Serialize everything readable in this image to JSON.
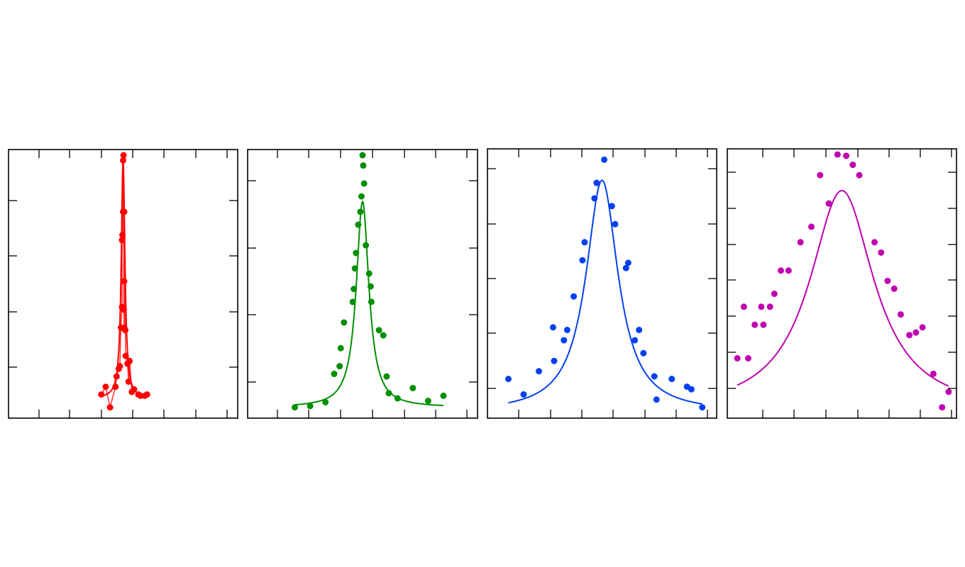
{
  "chart_data": [
    {
      "type": "scatter",
      "title": "",
      "xlabel": "",
      "ylabel": "",
      "xlim": [
        0,
        1
      ],
      "ylim": [
        0,
        1
      ],
      "grid": false,
      "color": "#ff0000",
      "fit_curve": {
        "shape": "lorentzian",
        "center": 0.5,
        "half_width": 0.01,
        "amplitude": 0.93,
        "baseline": 0.055
      },
      "fit_line_connected": true,
      "points": [
        {
          "x": 0.4,
          "y": 0.07
        },
        {
          "x": 0.44,
          "y": 0.02
        },
        {
          "x": 0.42,
          "y": 0.1
        },
        {
          "x": 0.465,
          "y": 0.1
        },
        {
          "x": 0.47,
          "y": 0.14
        },
        {
          "x": 0.48,
          "y": 0.17
        },
        {
          "x": 0.485,
          "y": 0.18
        },
        {
          "x": 0.49,
          "y": 0.33
        },
        {
          "x": 0.495,
          "y": 0.41
        },
        {
          "x": 0.495,
          "y": 0.67
        },
        {
          "x": 0.497,
          "y": 0.69
        },
        {
          "x": 0.5,
          "y": 0.78
        },
        {
          "x": 0.5,
          "y": 0.98
        },
        {
          "x": 0.502,
          "y": 1.0
        },
        {
          "x": 0.503,
          "y": 0.4
        },
        {
          "x": 0.505,
          "y": 0.33
        },
        {
          "x": 0.505,
          "y": 0.51
        },
        {
          "x": 0.505,
          "y": 0.78
        },
        {
          "x": 0.51,
          "y": 0.32
        },
        {
          "x": 0.512,
          "y": 0.22
        },
        {
          "x": 0.52,
          "y": 0.19
        },
        {
          "x": 0.525,
          "y": 0.12
        },
        {
          "x": 0.53,
          "y": 0.2
        },
        {
          "x": 0.54,
          "y": 0.08
        },
        {
          "x": 0.55,
          "y": 0.09
        },
        {
          "x": 0.57,
          "y": 0.07
        },
        {
          "x": 0.58,
          "y": 0.065
        },
        {
          "x": 0.6,
          "y": 0.065
        },
        {
          "x": 0.61,
          "y": 0.07
        }
      ]
    },
    {
      "type": "scatter",
      "title": "",
      "xlabel": "",
      "ylabel": "",
      "xlim": [
        0,
        1
      ],
      "ylim": [
        0,
        1
      ],
      "grid": false,
      "color": "#009000",
      "fit_curve": {
        "shape": "lorentzian",
        "center": 0.5,
        "half_width": 0.035,
        "amplitude": 0.8,
        "baseline": 0.02
      },
      "fit_line_connected": false,
      "points": [
        {
          "x": 0.19,
          "y": 0.02
        },
        {
          "x": 0.26,
          "y": 0.025
        },
        {
          "x": 0.33,
          "y": 0.04
        },
        {
          "x": 0.37,
          "y": 0.15
        },
        {
          "x": 0.395,
          "y": 0.18
        },
        {
          "x": 0.4,
          "y": 0.25
        },
        {
          "x": 0.415,
          "y": 0.35
        },
        {
          "x": 0.455,
          "y": 0.43
        },
        {
          "x": 0.46,
          "y": 0.48
        },
        {
          "x": 0.465,
          "y": 0.56
        },
        {
          "x": 0.47,
          "y": 0.62
        },
        {
          "x": 0.48,
          "y": 0.73
        },
        {
          "x": 0.49,
          "y": 0.78
        },
        {
          "x": 0.495,
          "y": 0.84
        },
        {
          "x": 0.5,
          "y": 1.0
        },
        {
          "x": 0.503,
          "y": 0.96
        },
        {
          "x": 0.507,
          "y": 0.89
        },
        {
          "x": 0.515,
          "y": 0.65
        },
        {
          "x": 0.53,
          "y": 0.54
        },
        {
          "x": 0.537,
          "y": 0.49
        },
        {
          "x": 0.54,
          "y": 0.43
        },
        {
          "x": 0.575,
          "y": 0.32
        },
        {
          "x": 0.595,
          "y": 0.3
        },
        {
          "x": 0.61,
          "y": 0.14
        },
        {
          "x": 0.62,
          "y": 0.075
        },
        {
          "x": 0.66,
          "y": 0.055
        },
        {
          "x": 0.73,
          "y": 0.095
        },
        {
          "x": 0.8,
          "y": 0.045
        },
        {
          "x": 0.87,
          "y": 0.065
        }
      ]
    },
    {
      "type": "scatter",
      "title": "",
      "xlabel": "",
      "ylabel": "",
      "xlim": [
        0,
        1
      ],
      "ylim": [
        0,
        1
      ],
      "grid": false,
      "color": "#0040f0",
      "fit_curve": {
        "shape": "lorentzian",
        "center": 0.5,
        "half_width": 0.09,
        "amplitude": 0.9,
        "baseline": 0.0
      },
      "fit_line_connected": false,
      "points": [
        {
          "x": 0.07,
          "y": 0.13
        },
        {
          "x": 0.14,
          "y": 0.07
        },
        {
          "x": 0.21,
          "y": 0.16
        },
        {
          "x": 0.275,
          "y": 0.33
        },
        {
          "x": 0.28,
          "y": 0.2
        },
        {
          "x": 0.325,
          "y": 0.28
        },
        {
          "x": 0.34,
          "y": 0.32
        },
        {
          "x": 0.37,
          "y": 0.45
        },
        {
          "x": 0.41,
          "y": 0.59
        },
        {
          "x": 0.42,
          "y": 0.66
        },
        {
          "x": 0.465,
          "y": 0.83
        },
        {
          "x": 0.475,
          "y": 0.89
        },
        {
          "x": 0.51,
          "y": 0.98
        },
        {
          "x": 0.545,
          "y": 0.8
        },
        {
          "x": 0.56,
          "y": 0.73
        },
        {
          "x": 0.61,
          "y": 0.56
        },
        {
          "x": 0.62,
          "y": 0.58
        },
        {
          "x": 0.65,
          "y": 0.28
        },
        {
          "x": 0.67,
          "y": 0.32
        },
        {
          "x": 0.69,
          "y": 0.23
        },
        {
          "x": 0.74,
          "y": 0.14
        },
        {
          "x": 0.75,
          "y": 0.05
        },
        {
          "x": 0.82,
          "y": 0.13
        },
        {
          "x": 0.89,
          "y": 0.1
        },
        {
          "x": 0.91,
          "y": 0.09
        },
        {
          "x": 0.96,
          "y": 0.02
        }
      ]
    },
    {
      "type": "scatter",
      "title": "",
      "xlabel": "",
      "ylabel": "",
      "xlim": [
        0,
        1
      ],
      "ylim": [
        0,
        1
      ],
      "grid": false,
      "color": "#c000b0",
      "fit_curve": {
        "shape": "lorentzian",
        "center": 0.5,
        "half_width": 0.18,
        "amplitude": 0.86,
        "baseline": 0.0
      },
      "fit_line_connected": false,
      "points": [
        {
          "x": 0.02,
          "y": 0.21
        },
        {
          "x": 0.05,
          "y": 0.41
        },
        {
          "x": 0.07,
          "y": 0.21
        },
        {
          "x": 0.1,
          "y": 0.34
        },
        {
          "x": 0.13,
          "y": 0.41
        },
        {
          "x": 0.14,
          "y": 0.34
        },
        {
          "x": 0.17,
          "y": 0.41
        },
        {
          "x": 0.19,
          "y": 0.46
        },
        {
          "x": 0.22,
          "y": 0.55
        },
        {
          "x": 0.255,
          "y": 0.55
        },
        {
          "x": 0.31,
          "y": 0.66
        },
        {
          "x": 0.36,
          "y": 0.72
        },
        {
          "x": 0.4,
          "y": 0.92
        },
        {
          "x": 0.44,
          "y": 0.81
        },
        {
          "x": 0.48,
          "y": 1.0
        },
        {
          "x": 0.52,
          "y": 0.995
        },
        {
          "x": 0.55,
          "y": 0.96
        },
        {
          "x": 0.58,
          "y": 0.92
        },
        {
          "x": 0.65,
          "y": 0.66
        },
        {
          "x": 0.68,
          "y": 0.62
        },
        {
          "x": 0.71,
          "y": 0.51
        },
        {
          "x": 0.74,
          "y": 0.48
        },
        {
          "x": 0.77,
          "y": 0.38
        },
        {
          "x": 0.81,
          "y": 0.3
        },
        {
          "x": 0.84,
          "y": 0.31
        },
        {
          "x": 0.87,
          "y": 0.33
        },
        {
          "x": 0.92,
          "y": 0.15
        },
        {
          "x": 0.96,
          "y": 0.02
        },
        {
          "x": 0.99,
          "y": 0.08
        }
      ]
    }
  ]
}
